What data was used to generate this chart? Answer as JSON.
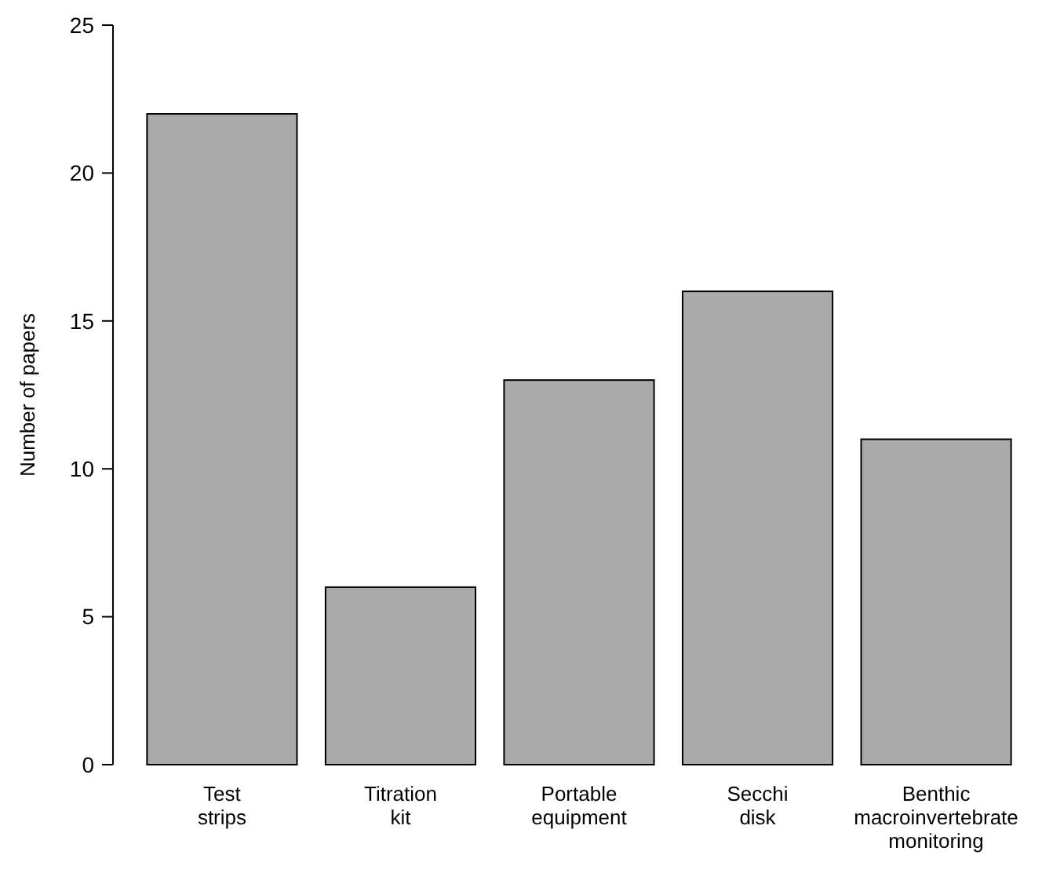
{
  "chart_data": {
    "type": "bar",
    "ylabel": "Number of papers",
    "categories": [
      "Test strips",
      "Titration kit",
      "Portable equipment",
      "Secchi disk",
      "Benthic macroinvertebrate monitoring"
    ],
    "values": [
      22,
      6,
      13,
      16,
      11
    ],
    "color": "#aaaaaa",
    "ylim": [
      0,
      25
    ],
    "yticks": [
      0,
      5,
      10,
      15,
      20,
      25
    ],
    "grid": false
  }
}
